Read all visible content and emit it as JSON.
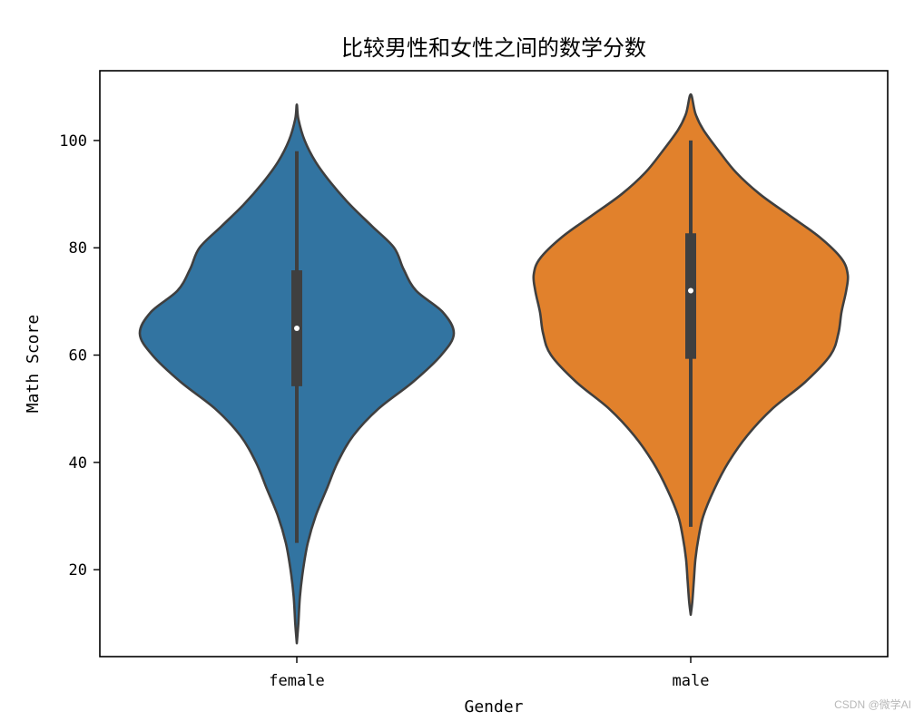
{
  "chart_data": {
    "type": "violin",
    "title": "比较男性和女性之间的数学分数",
    "xlabel": "Gender",
    "ylabel": "Math Score",
    "categories": [
      "female",
      "male"
    ],
    "colors": [
      "#3274a1",
      "#e1812c"
    ],
    "edge_color": "#3f3f3f",
    "ylim": [
      3.8,
      113.0
    ],
    "yticks": [
      20,
      40,
      60,
      80,
      100
    ],
    "grid": false,
    "violins": [
      {
        "name": "female",
        "kde_extent": [
          6.3,
          106.7
        ],
        "whisker": [
          25,
          98
        ],
        "q1": 54.2,
        "median": 65,
        "q3": 75.8,
        "density_profile": [
          {
            "y": 6.3,
            "w": 0.0
          },
          {
            "y": 10,
            "w": 0.01
          },
          {
            "y": 15,
            "w": 0.02
          },
          {
            "y": 20,
            "w": 0.04
          },
          {
            "y": 25,
            "w": 0.07
          },
          {
            "y": 30,
            "w": 0.12
          },
          {
            "y": 35,
            "w": 0.19
          },
          {
            "y": 40,
            "w": 0.26
          },
          {
            "y": 45,
            "w": 0.36
          },
          {
            "y": 50,
            "w": 0.52
          },
          {
            "y": 55,
            "w": 0.74
          },
          {
            "y": 60,
            "w": 0.92
          },
          {
            "y": 64,
            "w": 1.0
          },
          {
            "y": 68,
            "w": 0.93
          },
          {
            "y": 72,
            "w": 0.76
          },
          {
            "y": 76,
            "w": 0.68
          },
          {
            "y": 80,
            "w": 0.62
          },
          {
            "y": 84,
            "w": 0.48
          },
          {
            "y": 88,
            "w": 0.34
          },
          {
            "y": 92,
            "w": 0.22
          },
          {
            "y": 96,
            "w": 0.12
          },
          {
            "y": 100,
            "w": 0.05
          },
          {
            "y": 104,
            "w": 0.01
          },
          {
            "y": 106.7,
            "w": 0.0
          }
        ]
      },
      {
        "name": "male",
        "kde_extent": [
          11.6,
          108.6
        ],
        "whisker": [
          28,
          100
        ],
        "q1": 59.3,
        "median": 72,
        "q3": 82.7,
        "density_profile": [
          {
            "y": 11.6,
            "w": 0.0
          },
          {
            "y": 14,
            "w": 0.01
          },
          {
            "y": 18,
            "w": 0.02
          },
          {
            "y": 22,
            "w": 0.03
          },
          {
            "y": 26,
            "w": 0.05
          },
          {
            "y": 30,
            "w": 0.08
          },
          {
            "y": 35,
            "w": 0.15
          },
          {
            "y": 40,
            "w": 0.24
          },
          {
            "y": 45,
            "w": 0.36
          },
          {
            "y": 50,
            "w": 0.52
          },
          {
            "y": 55,
            "w": 0.73
          },
          {
            "y": 60,
            "w": 0.89
          },
          {
            "y": 64,
            "w": 0.94
          },
          {
            "y": 68,
            "w": 0.96
          },
          {
            "y": 72,
            "w": 0.99
          },
          {
            "y": 75,
            "w": 1.0
          },
          {
            "y": 78,
            "w": 0.96
          },
          {
            "y": 82,
            "w": 0.82
          },
          {
            "y": 86,
            "w": 0.63
          },
          {
            "y": 90,
            "w": 0.44
          },
          {
            "y": 94,
            "w": 0.29
          },
          {
            "y": 98,
            "w": 0.18
          },
          {
            "y": 102,
            "w": 0.08
          },
          {
            "y": 105,
            "w": 0.03
          },
          {
            "y": 108.6,
            "w": 0.0
          }
        ]
      }
    ]
  },
  "watermark": "CSDN @微学AI"
}
